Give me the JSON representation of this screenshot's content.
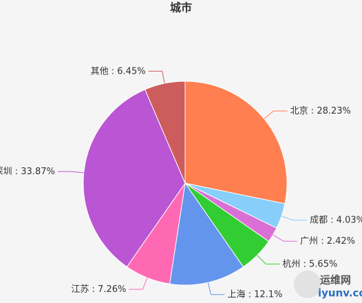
{
  "chart_data": {
    "type": "pie",
    "title": "城市",
    "categories": [
      "北京",
      "成都",
      "广州",
      "杭州",
      "上海",
      "江苏",
      "深圳",
      "其他"
    ],
    "values": [
      28.23,
      4.03,
      2.42,
      5.65,
      12.1,
      7.26,
      33.87,
      6.45
    ],
    "value_labels": [
      "28.23%",
      "4.03%",
      "2.42%",
      "5.65%",
      "12.1%",
      "7.26%",
      "33.87%",
      "6.45%"
    ],
    "label_separator": " : ",
    "colors": [
      "#ff7f50",
      "#87cefa",
      "#da70d6",
      "#32cd32",
      "#6495ed",
      "#ff69b4",
      "#ba55d3",
      "#cd5c5c"
    ]
  },
  "watermark": {
    "name": "运维网",
    "url": "iyunv.com"
  }
}
